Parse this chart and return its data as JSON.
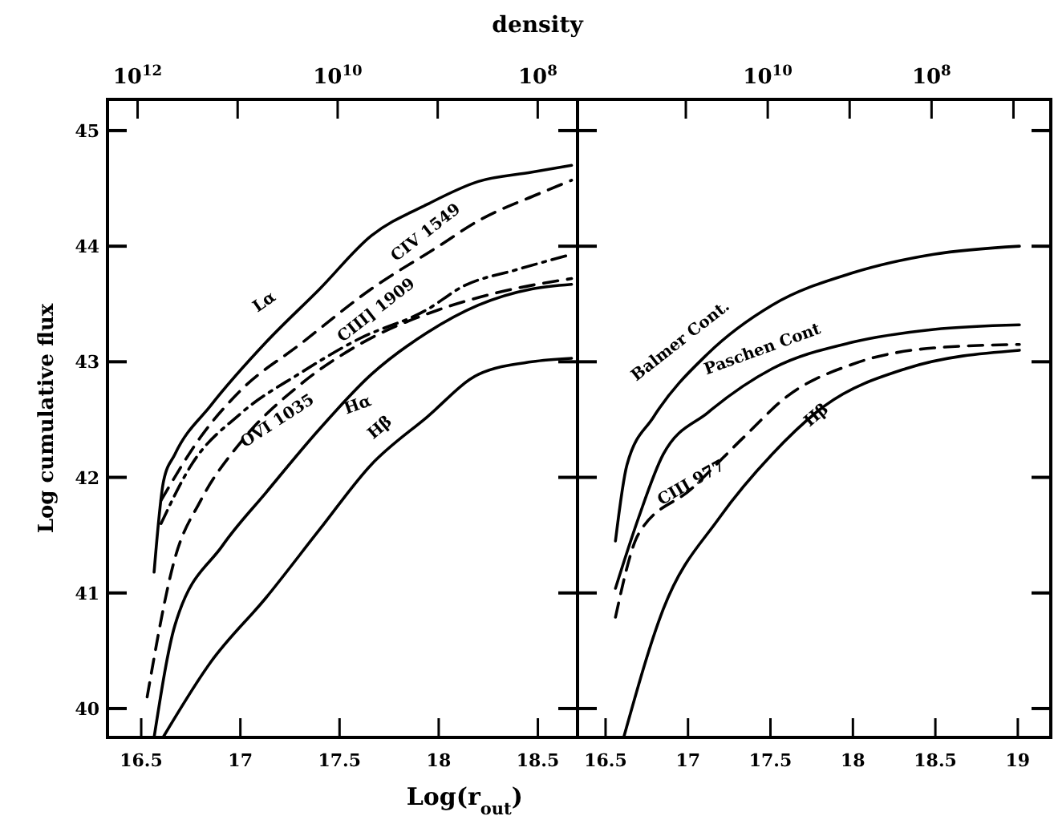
{
  "chart_data": [
    {
      "type": "line",
      "xlabel": "Log(r$_{out}$)",
      "ylabel": "Log cumulative flux",
      "x2label": "density",
      "xlim": [
        16.33,
        18.7
      ],
      "xticks": [
        16.5,
        17,
        17.5,
        18,
        18.5
      ],
      "ylim": [
        39.75,
        45.27
      ],
      "yticks": [
        40,
        41,
        42,
        43,
        44,
        45
      ],
      "x2lim": [
        2000000000000.0,
        40000000.0
      ],
      "x2ticks": [
        {
          "value": 1000000000000.0,
          "label": "10$^{12}$"
        },
        {
          "value": 100000000000.0,
          "label": null
        },
        {
          "value": 10000000000.0,
          "label": "10$^{10}$"
        },
        {
          "value": 1000000000.0,
          "label": null
        },
        {
          "value": 100000000.0,
          "label": "10$^{8}$"
        }
      ],
      "log": "x2",
      "grid": false,
      "legend": false,
      "series": [
        {
          "name": "Lα",
          "color": "#000000",
          "line_style": "solid",
          "x": [
            16.565,
            16.613,
            16.67,
            16.85,
            17.13,
            17.4,
            17.66,
            17.94,
            18.2,
            18.47,
            18.67
          ],
          "values": [
            41.18,
            41.97,
            42.2,
            42.62,
            43.17,
            43.63,
            44.09,
            44.36,
            44.56,
            44.64,
            44.7
          ]
        },
        {
          "name": "CIV 1549",
          "color": "#000000",
          "line_style": "dashed",
          "x": [
            16.6,
            16.8,
            17.0,
            17.3,
            17.66,
            18.0,
            18.2,
            18.5,
            18.67
          ],
          "values": [
            41.8,
            42.35,
            42.75,
            43.15,
            43.63,
            44.0,
            44.22,
            44.45,
            44.57
          ]
        },
        {
          "name": "CIII] 1909",
          "color": "#000000",
          "line_style": "dashdot",
          "x": [
            16.6,
            16.75,
            17.0,
            17.3,
            17.6,
            17.94,
            18.12,
            18.4,
            18.67
          ],
          "values": [
            41.6,
            42.1,
            42.55,
            42.9,
            43.2,
            43.45,
            43.65,
            43.8,
            43.93
          ]
        },
        {
          "name": "OVI 1035",
          "color": "#000000",
          "line_style": "dashed",
          "x": [
            16.53,
            16.67,
            16.8,
            17.0,
            17.3,
            17.6,
            18.0,
            18.3,
            18.67
          ],
          "values": [
            40.1,
            41.3,
            41.8,
            42.3,
            42.8,
            43.15,
            43.45,
            43.6,
            43.72
          ]
        },
        {
          "name": "Hα",
          "color": "#000000",
          "line_style": "solid",
          "x": [
            16.565,
            16.67,
            16.91,
            17.13,
            17.4,
            17.66,
            17.94,
            18.2,
            18.47,
            18.67
          ],
          "values": [
            39.75,
            40.72,
            41.41,
            41.87,
            42.42,
            42.89,
            43.25,
            43.49,
            43.63,
            43.67
          ]
        },
        {
          "name": "Hβ",
          "color": "#000000",
          "line_style": "solid",
          "x": [
            16.61,
            16.85,
            17.13,
            17.4,
            17.66,
            17.94,
            18.2,
            18.47,
            18.67
          ],
          "values": [
            39.75,
            40.4,
            40.96,
            41.55,
            42.11,
            42.52,
            42.89,
            43.0,
            43.03
          ]
        }
      ]
    },
    {
      "type": "line",
      "xlim": [
        16.33,
        19.2
      ],
      "xticks": [
        16.5,
        17,
        17.5,
        18,
        18.5,
        19
      ],
      "ylim": [
        39.75,
        45.27
      ],
      "yticks": [
        40,
        41,
        42,
        43,
        44,
        45
      ],
      "x2lim": [
        2100000000000.0,
        3500000.0
      ],
      "x2ticks": [
        {
          "value": 100000000000.0,
          "label": null
        },
        {
          "value": 10000000000.0,
          "label": "10$^{10}$"
        },
        {
          "value": 1000000000.0,
          "label": null
        },
        {
          "value": 100000000.0,
          "label": "10$^{8}$"
        },
        {
          "value": 10000000.0,
          "label": null
        }
      ],
      "log": "x2",
      "grid": false,
      "legend": false,
      "tick_labels": "x",
      "series": [
        {
          "name": "Balmer Cont.",
          "color": "#000000",
          "line_style": "solid",
          "x": [
            16.56,
            16.63,
            16.79,
            17.12,
            17.51,
            18.0,
            18.49,
            19.01
          ],
          "values": [
            41.45,
            42.11,
            42.52,
            43.07,
            43.49,
            43.77,
            43.93,
            44.0
          ]
        },
        {
          "name": "Paschen Cont",
          "color": "#000000",
          "line_style": "solid",
          "x": [
            16.56,
            16.7,
            16.85,
            17.12,
            17.51,
            18.0,
            18.49,
            19.01
          ],
          "values": [
            41.04,
            41.65,
            42.2,
            42.56,
            42.94,
            43.17,
            43.28,
            43.32
          ]
        },
        {
          "name": "CIII 977",
          "color": "#000000",
          "line_style": "dashed",
          "x": [
            16.56,
            16.7,
            17.02,
            17.34,
            17.6,
            18.0,
            18.49,
            19.01
          ],
          "values": [
            40.79,
            41.51,
            41.9,
            42.35,
            42.7,
            42.98,
            43.12,
            43.15
          ]
        },
        {
          "name": "Hβ",
          "color": "#000000",
          "line_style": "solid",
          "x": [
            16.61,
            16.85,
            17.19,
            17.51,
            17.83,
            18.32,
            19.01
          ],
          "values": [
            39.75,
            40.86,
            41.65,
            42.2,
            42.62,
            42.94,
            43.1
          ]
        }
      ]
    }
  ]
}
